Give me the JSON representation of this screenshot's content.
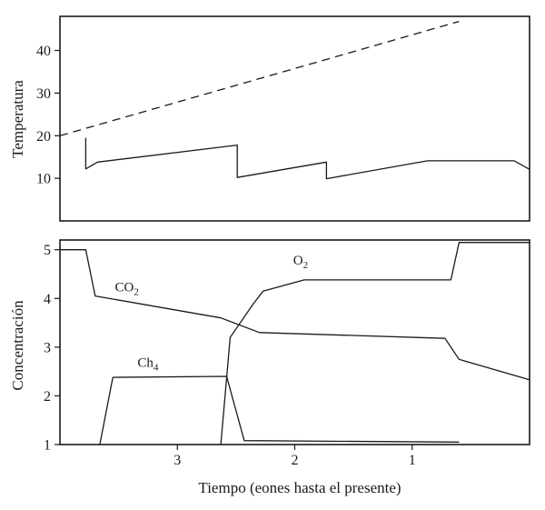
{
  "chart_data": [
    {
      "type": "line",
      "title": "",
      "xlabel": "",
      "ylabel": "Temperatura",
      "x_reversed": true,
      "xlim": [
        4.0,
        0.0
      ],
      "ylim": [
        0,
        48
      ],
      "yticks": [
        10,
        20,
        30,
        40
      ],
      "grid": false,
      "series": [
        {
          "style": "dashed",
          "x": [
            4.0,
            0.6
          ],
          "y": [
            20.0,
            46.8
          ]
        },
        {
          "style": "solid",
          "x": [
            3.78,
            3.78,
            3.68,
            2.49,
            2.49,
            1.73,
            1.73,
            0.87,
            0.13,
            0.0
          ],
          "y": [
            19.5,
            12.2,
            13.8,
            17.8,
            10.2,
            13.8,
            9.9,
            14.1,
            14.1,
            12.1
          ]
        }
      ]
    },
    {
      "type": "line",
      "title": "",
      "xlabel": "Tiempo (eones hasta el presente)",
      "ylabel": "Concentración",
      "x_reversed": true,
      "xlim": [
        4.0,
        0.0
      ],
      "ylim": [
        1,
        5.2
      ],
      "yticks": [
        1,
        2,
        3,
        4,
        5
      ],
      "xticks": [
        3,
        2,
        1
      ],
      "grid": false,
      "series": [
        {
          "label_base": "CO",
          "label_sub": "2",
          "x": [
            4.0,
            3.78,
            3.7,
            2.63,
            2.3,
            0.72,
            0.6,
            0.0
          ],
          "y": [
            5.0,
            5.0,
            4.05,
            3.6,
            3.3,
            3.18,
            2.75,
            2.33
          ]
        },
        {
          "label_base": "O",
          "label_sub": "2",
          "x": [
            2.63,
            2.55,
            2.35,
            2.27,
            1.92,
            0.67,
            0.6,
            0.0
          ],
          "y": [
            1.0,
            3.2,
            3.9,
            4.15,
            4.38,
            4.38,
            5.15,
            5.15
          ]
        },
        {
          "label_base": "Ch",
          "label_sub": "4",
          "x": [
            3.66,
            3.55,
            2.58,
            2.43,
            0.6
          ],
          "y": [
            1.0,
            2.38,
            2.4,
            1.08,
            1.05
          ]
        }
      ]
    }
  ]
}
